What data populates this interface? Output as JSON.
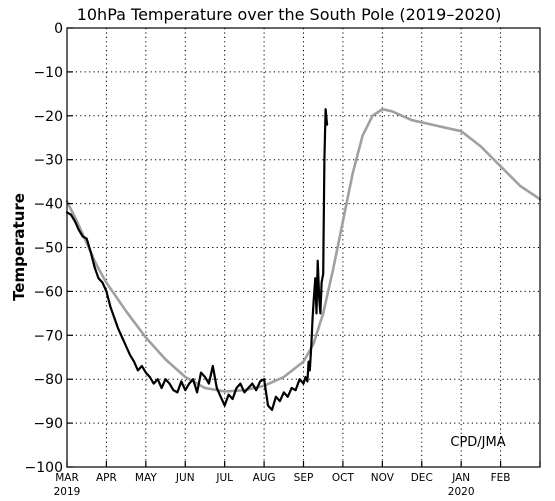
{
  "chart_data": {
    "type": "line",
    "title": "10hPa Temperature over the South Pole (2019–2020)",
    "ylabel": "Temperature",
    "xlabel": "",
    "ylim": [
      -100,
      0
    ],
    "yticks": [
      0,
      -10,
      -20,
      -30,
      -40,
      -50,
      -60,
      -70,
      -80,
      -90,
      -100
    ],
    "x_months": [
      "MAR",
      "APR",
      "MAY",
      "JUN",
      "JUL",
      "AUG",
      "SEP",
      "OCT",
      "NOV",
      "DEC",
      "JAN",
      "FEB"
    ],
    "x_years": [
      {
        "label": "2019",
        "month_index": 0
      },
      {
        "label": "2020",
        "month_index": 10
      }
    ],
    "grid": "dotted",
    "annotation": "CPD/JMA",
    "series": [
      {
        "role": "climatology",
        "color": "#a0a0a0",
        "x": [
          0,
          0.25,
          0.5,
          0.75,
          1.0,
          1.5,
          2.0,
          2.5,
          3.0,
          3.5,
          4.0,
          4.5,
          5.0,
          5.5,
          6.0,
          6.25,
          6.5,
          6.75,
          7.0,
          7.25,
          7.5,
          7.75,
          8.0,
          8.25,
          8.5,
          8.75,
          9.0,
          9.5,
          10.0,
          10.5,
          11.0,
          11.5,
          12.0
        ],
        "y": [
          -39.5,
          -44,
          -49,
          -54,
          -58,
          -64.5,
          -70.5,
          -75.5,
          -79.5,
          -82,
          -82.8,
          -82.5,
          -81.5,
          -79.5,
          -76,
          -72,
          -65,
          -55,
          -44,
          -33,
          -24.5,
          -20,
          -18.5,
          -19,
          -20,
          -21,
          -21.5,
          -22.5,
          -23.5,
          -27,
          -31.5,
          -36,
          -39
        ]
      },
      {
        "role": "observed 2019",
        "color": "#000000",
        "x": [
          0,
          0.1,
          0.2,
          0.3,
          0.4,
          0.5,
          0.6,
          0.7,
          0.8,
          0.9,
          1.0,
          1.1,
          1.2,
          1.3,
          1.4,
          1.5,
          1.6,
          1.7,
          1.8,
          1.9,
          2.0,
          2.1,
          2.2,
          2.3,
          2.4,
          2.5,
          2.6,
          2.7,
          2.8,
          2.9,
          3.0,
          3.1,
          3.2,
          3.3,
          3.4,
          3.5,
          3.6,
          3.7,
          3.8,
          3.9,
          4.0,
          4.1,
          4.2,
          4.3,
          4.4,
          4.5,
          4.6,
          4.7,
          4.8,
          4.9,
          5.0,
          5.1,
          5.2,
          5.3,
          5.4,
          5.5,
          5.6,
          5.7,
          5.8,
          5.9,
          6.0,
          6.05,
          6.1,
          6.13,
          6.16,
          6.2,
          6.23,
          6.26,
          6.3,
          6.33,
          6.36,
          6.4,
          6.43,
          6.46,
          6.5,
          6.53,
          6.56,
          6.6
        ],
        "y": [
          -42,
          -42.5,
          -44,
          -46,
          -47.5,
          -48,
          -51,
          -54.5,
          -57,
          -58,
          -60,
          -63.5,
          -66,
          -68.5,
          -70.5,
          -72.5,
          -74.5,
          -76,
          -78,
          -77,
          -78.5,
          -79.5,
          -81,
          -80,
          -82,
          -80,
          -81,
          -82.5,
          -83,
          -80.5,
          -82.5,
          -81,
          -80,
          -83,
          -78.5,
          -79.5,
          -81,
          -77,
          -82,
          -84,
          -86,
          -83.5,
          -84.5,
          -82,
          -81,
          -83,
          -82,
          -81,
          -82.5,
          -80.5,
          -80,
          -86,
          -87,
          -84,
          -85,
          -83,
          -84,
          -82,
          -82.5,
          -80,
          -81,
          -79.5,
          -80.5,
          -76,
          -78,
          -72,
          -66,
          -62,
          -57,
          -65,
          -53,
          -62,
          -65,
          -58,
          -56,
          -30,
          -18.5,
          -22
        ]
      }
    ]
  }
}
